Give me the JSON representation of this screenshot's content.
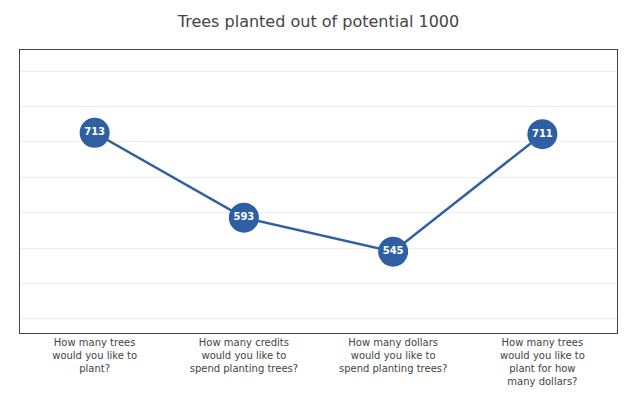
{
  "chart_data": {
    "type": "line",
    "title": "Trees planted out of potential 1000",
    "categories": [
      "How many trees\nwould you like to\nplant?",
      "How many credits\nwould you like to\nspend planting trees?",
      "How many dollars\nwould you like to\nspend planting trees?",
      "How many trees\nwould you like to\nplant for how\nmany dollars?"
    ],
    "values": [
      713,
      593,
      545,
      711
    ],
    "color": "#2E5FA3",
    "marker": "circle",
    "ylim": [
      430,
      830
    ],
    "yticks": [
      450,
      500,
      550,
      600,
      650,
      700,
      750,
      800
    ],
    "grid": true,
    "data_labels": true,
    "tick_labels": "x"
  }
}
